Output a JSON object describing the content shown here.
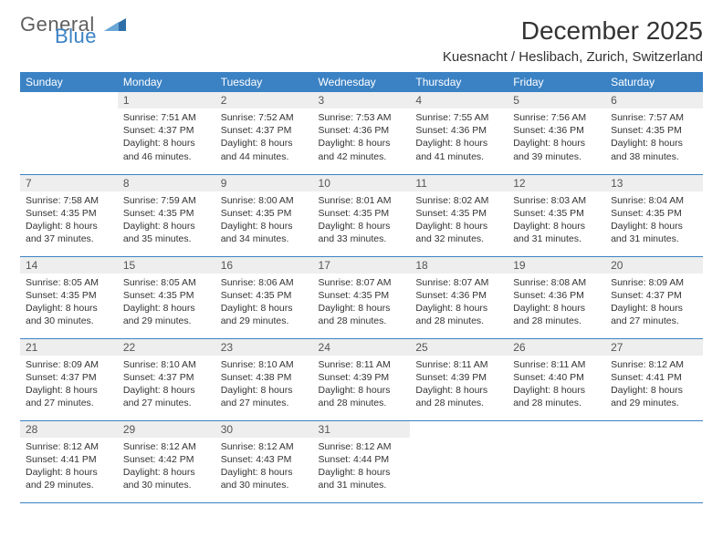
{
  "brand": {
    "line1": "General",
    "line2": "Blue",
    "tri_color": "#2f6fa8"
  },
  "title": "December 2025",
  "location": "Kuesnacht / Heslibach, Zurich, Switzerland",
  "colors": {
    "header_bg": "#3b82c4",
    "header_text": "#ffffff",
    "daynum_bg": "#eeeeee",
    "rule": "#3b82c4",
    "text": "#333333"
  },
  "weekdays": [
    "Sunday",
    "Monday",
    "Tuesday",
    "Wednesday",
    "Thursday",
    "Friday",
    "Saturday"
  ],
  "weeks": [
    [
      {
        "blank": true
      },
      {
        "day": "1",
        "sunrise": "Sunrise: 7:51 AM",
        "sunset": "Sunset: 4:37 PM",
        "daylight": "Daylight: 8 hours and 46 minutes."
      },
      {
        "day": "2",
        "sunrise": "Sunrise: 7:52 AM",
        "sunset": "Sunset: 4:37 PM",
        "daylight": "Daylight: 8 hours and 44 minutes."
      },
      {
        "day": "3",
        "sunrise": "Sunrise: 7:53 AM",
        "sunset": "Sunset: 4:36 PM",
        "daylight": "Daylight: 8 hours and 42 minutes."
      },
      {
        "day": "4",
        "sunrise": "Sunrise: 7:55 AM",
        "sunset": "Sunset: 4:36 PM",
        "daylight": "Daylight: 8 hours and 41 minutes."
      },
      {
        "day": "5",
        "sunrise": "Sunrise: 7:56 AM",
        "sunset": "Sunset: 4:36 PM",
        "daylight": "Daylight: 8 hours and 39 minutes."
      },
      {
        "day": "6",
        "sunrise": "Sunrise: 7:57 AM",
        "sunset": "Sunset: 4:35 PM",
        "daylight": "Daylight: 8 hours and 38 minutes."
      }
    ],
    [
      {
        "day": "7",
        "sunrise": "Sunrise: 7:58 AM",
        "sunset": "Sunset: 4:35 PM",
        "daylight": "Daylight: 8 hours and 37 minutes."
      },
      {
        "day": "8",
        "sunrise": "Sunrise: 7:59 AM",
        "sunset": "Sunset: 4:35 PM",
        "daylight": "Daylight: 8 hours and 35 minutes."
      },
      {
        "day": "9",
        "sunrise": "Sunrise: 8:00 AM",
        "sunset": "Sunset: 4:35 PM",
        "daylight": "Daylight: 8 hours and 34 minutes."
      },
      {
        "day": "10",
        "sunrise": "Sunrise: 8:01 AM",
        "sunset": "Sunset: 4:35 PM",
        "daylight": "Daylight: 8 hours and 33 minutes."
      },
      {
        "day": "11",
        "sunrise": "Sunrise: 8:02 AM",
        "sunset": "Sunset: 4:35 PM",
        "daylight": "Daylight: 8 hours and 32 minutes."
      },
      {
        "day": "12",
        "sunrise": "Sunrise: 8:03 AM",
        "sunset": "Sunset: 4:35 PM",
        "daylight": "Daylight: 8 hours and 31 minutes."
      },
      {
        "day": "13",
        "sunrise": "Sunrise: 8:04 AM",
        "sunset": "Sunset: 4:35 PM",
        "daylight": "Daylight: 8 hours and 31 minutes."
      }
    ],
    [
      {
        "day": "14",
        "sunrise": "Sunrise: 8:05 AM",
        "sunset": "Sunset: 4:35 PM",
        "daylight": "Daylight: 8 hours and 30 minutes."
      },
      {
        "day": "15",
        "sunrise": "Sunrise: 8:05 AM",
        "sunset": "Sunset: 4:35 PM",
        "daylight": "Daylight: 8 hours and 29 minutes."
      },
      {
        "day": "16",
        "sunrise": "Sunrise: 8:06 AM",
        "sunset": "Sunset: 4:35 PM",
        "daylight": "Daylight: 8 hours and 29 minutes."
      },
      {
        "day": "17",
        "sunrise": "Sunrise: 8:07 AM",
        "sunset": "Sunset: 4:35 PM",
        "daylight": "Daylight: 8 hours and 28 minutes."
      },
      {
        "day": "18",
        "sunrise": "Sunrise: 8:07 AM",
        "sunset": "Sunset: 4:36 PM",
        "daylight": "Daylight: 8 hours and 28 minutes."
      },
      {
        "day": "19",
        "sunrise": "Sunrise: 8:08 AM",
        "sunset": "Sunset: 4:36 PM",
        "daylight": "Daylight: 8 hours and 28 minutes."
      },
      {
        "day": "20",
        "sunrise": "Sunrise: 8:09 AM",
        "sunset": "Sunset: 4:37 PM",
        "daylight": "Daylight: 8 hours and 27 minutes."
      }
    ],
    [
      {
        "day": "21",
        "sunrise": "Sunrise: 8:09 AM",
        "sunset": "Sunset: 4:37 PM",
        "daylight": "Daylight: 8 hours and 27 minutes."
      },
      {
        "day": "22",
        "sunrise": "Sunrise: 8:10 AM",
        "sunset": "Sunset: 4:37 PM",
        "daylight": "Daylight: 8 hours and 27 minutes."
      },
      {
        "day": "23",
        "sunrise": "Sunrise: 8:10 AM",
        "sunset": "Sunset: 4:38 PM",
        "daylight": "Daylight: 8 hours and 27 minutes."
      },
      {
        "day": "24",
        "sunrise": "Sunrise: 8:11 AM",
        "sunset": "Sunset: 4:39 PM",
        "daylight": "Daylight: 8 hours and 28 minutes."
      },
      {
        "day": "25",
        "sunrise": "Sunrise: 8:11 AM",
        "sunset": "Sunset: 4:39 PM",
        "daylight": "Daylight: 8 hours and 28 minutes."
      },
      {
        "day": "26",
        "sunrise": "Sunrise: 8:11 AM",
        "sunset": "Sunset: 4:40 PM",
        "daylight": "Daylight: 8 hours and 28 minutes."
      },
      {
        "day": "27",
        "sunrise": "Sunrise: 8:12 AM",
        "sunset": "Sunset: 4:41 PM",
        "daylight": "Daylight: 8 hours and 29 minutes."
      }
    ],
    [
      {
        "day": "28",
        "sunrise": "Sunrise: 8:12 AM",
        "sunset": "Sunset: 4:41 PM",
        "daylight": "Daylight: 8 hours and 29 minutes."
      },
      {
        "day": "29",
        "sunrise": "Sunrise: 8:12 AM",
        "sunset": "Sunset: 4:42 PM",
        "daylight": "Daylight: 8 hours and 30 minutes."
      },
      {
        "day": "30",
        "sunrise": "Sunrise: 8:12 AM",
        "sunset": "Sunset: 4:43 PM",
        "daylight": "Daylight: 8 hours and 30 minutes."
      },
      {
        "day": "31",
        "sunrise": "Sunrise: 8:12 AM",
        "sunset": "Sunset: 4:44 PM",
        "daylight": "Daylight: 8 hours and 31 minutes."
      },
      {
        "blank": true
      },
      {
        "blank": true
      },
      {
        "blank": true
      }
    ]
  ]
}
